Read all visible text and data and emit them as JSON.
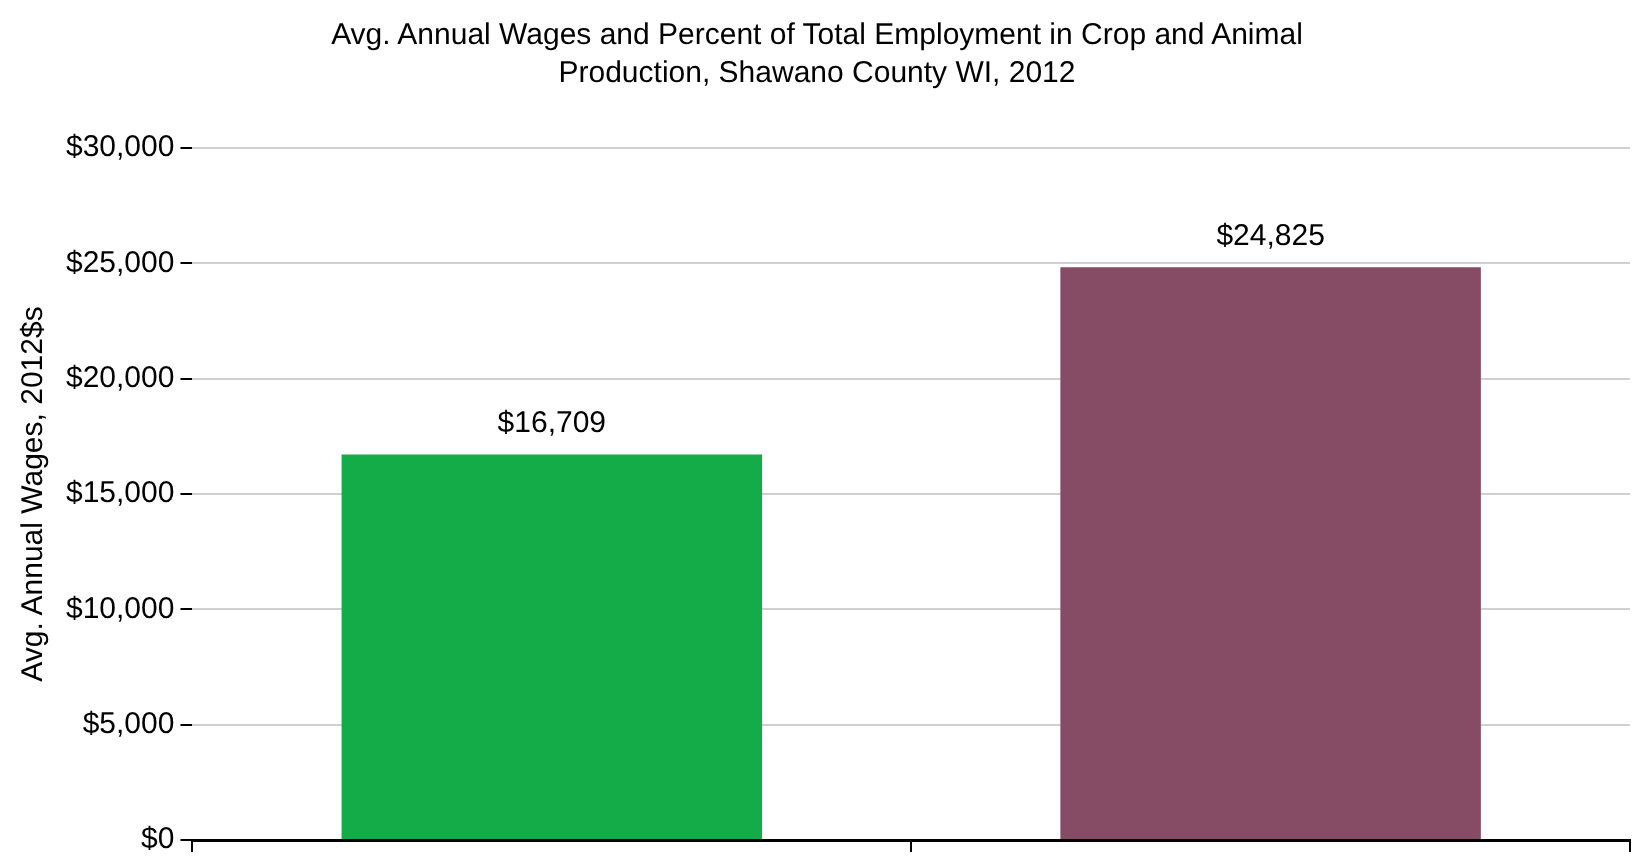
{
  "chart_data": {
    "type": "bar",
    "title": "Avg. Annual Wages and Percent of Total Employment in Crop and Animal Production, Shawano County WI, 2012",
    "ylabel": "Avg. Annual Wages, 2012$s",
    "categories": [
      null,
      null
    ],
    "values": [
      16709,
      24825
    ],
    "colors": [
      "#14ac48",
      "#874c65"
    ],
    "value_labels": [
      "$16,709",
      "$24,825"
    ],
    "ylim": [
      0,
      30000
    ],
    "yticks": [
      {
        "value": 0,
        "label": "$0"
      },
      {
        "value": 5000,
        "label": "$5,000"
      },
      {
        "value": 10000,
        "label": "$10,000"
      },
      {
        "value": 15000,
        "label": "$15,000"
      },
      {
        "value": 20000,
        "label": "$20,000"
      },
      {
        "value": 25000,
        "label": "$25,000"
      },
      {
        "value": 30000,
        "label": "$30,000"
      }
    ],
    "grid": "y",
    "legend": false
  }
}
